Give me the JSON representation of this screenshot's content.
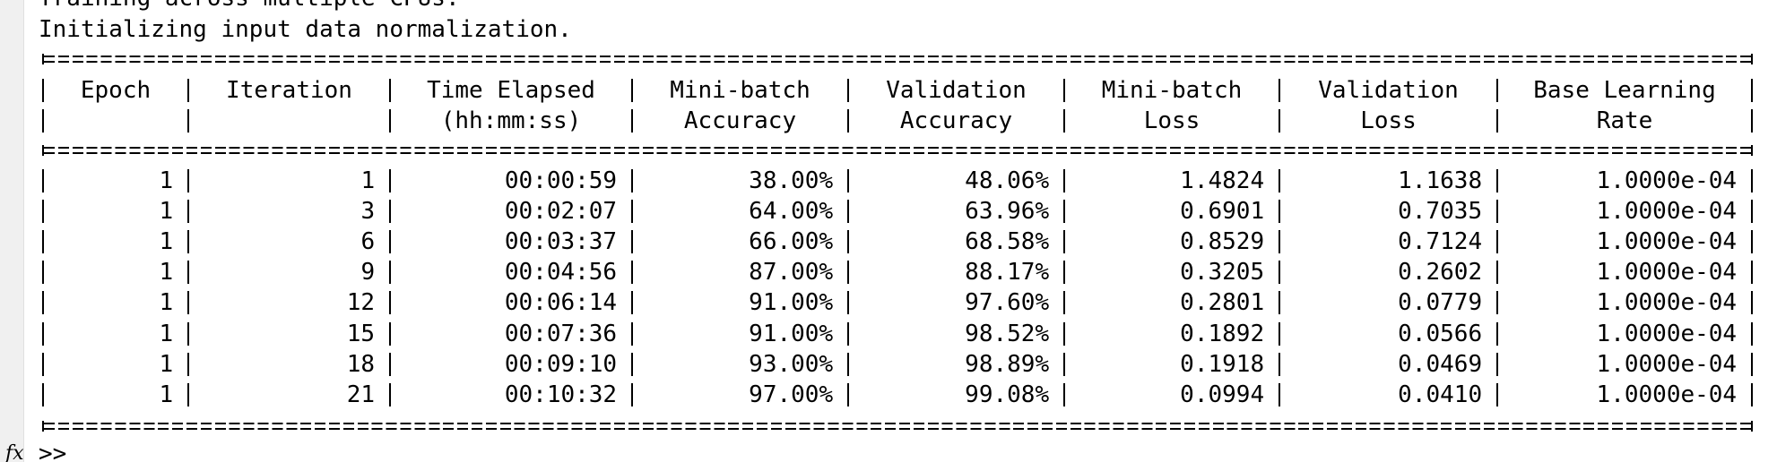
{
  "log": [
    "Training across multiple CPUs.",
    "Initializing input data normalization."
  ],
  "table": {
    "columns": [
      {
        "lines": [
          "Epoch"
        ]
      },
      {
        "lines": [
          "Iteration"
        ]
      },
      {
        "lines": [
          "Time Elapsed",
          "(hh:mm:ss)"
        ]
      },
      {
        "lines": [
          "Mini-batch",
          "Accuracy"
        ]
      },
      {
        "lines": [
          "Validation",
          "Accuracy"
        ]
      },
      {
        "lines": [
          "Mini-batch",
          "Loss"
        ]
      },
      {
        "lines": [
          "Validation",
          "Loss"
        ]
      },
      {
        "lines": [
          "Base Learning",
          "Rate"
        ]
      }
    ],
    "rows": [
      [
        "1",
        "1",
        "00:00:59",
        "38.00%",
        "48.06%",
        "1.4824",
        "1.1638",
        "1.0000e-04"
      ],
      [
        "1",
        "3",
        "00:02:07",
        "64.00%",
        "63.96%",
        "0.6901",
        "0.7035",
        "1.0000e-04"
      ],
      [
        "1",
        "6",
        "00:03:37",
        "66.00%",
        "68.58%",
        "0.8529",
        "0.7124",
        "1.0000e-04"
      ],
      [
        "1",
        "9",
        "00:04:56",
        "87.00%",
        "88.17%",
        "0.3205",
        "0.2602",
        "1.0000e-04"
      ],
      [
        "1",
        "12",
        "00:06:14",
        "91.00%",
        "97.60%",
        "0.2801",
        "0.0779",
        "1.0000e-04"
      ],
      [
        "1",
        "15",
        "00:07:36",
        "91.00%",
        "98.52%",
        "0.1892",
        "0.0566",
        "1.0000e-04"
      ],
      [
        "1",
        "18",
        "00:09:10",
        "93.00%",
        "98.89%",
        "0.1918",
        "0.0469",
        "1.0000e-04"
      ],
      [
        "1",
        "21",
        "00:10:32",
        "97.00%",
        "99.08%",
        "0.0994",
        "0.0410",
        "1.0000e-04"
      ]
    ]
  },
  "prompt": {
    "icon": "fx",
    "text": ">>"
  }
}
